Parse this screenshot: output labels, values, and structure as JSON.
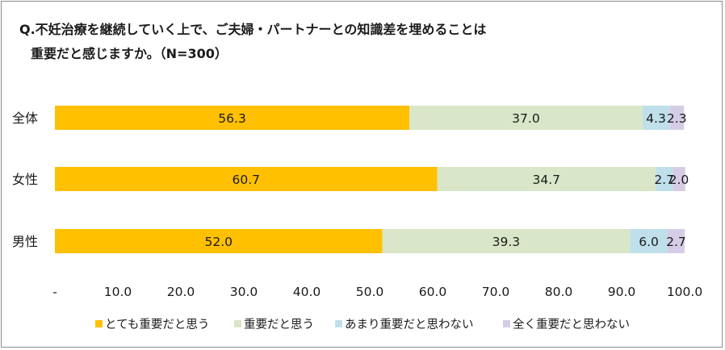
{
  "chart_data": {
    "type": "bar",
    "orientation": "horizontal",
    "stacked": true,
    "title_line1": "Q.不妊治療を継続していく上で、ご夫婦・パートナーとの知識差を埋めることは",
    "title_line2": "重要だと感じますか。（N=300）",
    "categories": [
      "全体",
      "女性",
      "男性"
    ],
    "series": [
      {
        "name": "とても重要だと思う",
        "color": "#ffc000",
        "values": [
          56.3,
          60.7,
          52.0
        ],
        "labels": [
          "56.3",
          "60.7",
          "52.0"
        ]
      },
      {
        "name": "重要だと思う",
        "color": "#d9e6c7",
        "values": [
          37.0,
          34.7,
          39.3
        ],
        "labels": [
          "37.0",
          "34.7",
          "39.3"
        ]
      },
      {
        "name": "あまり重要だと思わない",
        "color": "#bfe0ea",
        "values": [
          4.3,
          2.7,
          6.0
        ],
        "labels": [
          "4.3",
          "2.7",
          "6.0"
        ]
      },
      {
        "name": "全く重要だと思わない",
        "color": "#d5cde6",
        "values": [
          2.3,
          2.0,
          2.7
        ],
        "labels": [
          "2.3",
          "2.0",
          "2.7"
        ]
      }
    ],
    "xlim": [
      0,
      100
    ],
    "xticks": [
      0,
      10,
      20,
      30,
      40,
      50,
      60,
      70,
      80,
      90,
      100
    ],
    "xtick_labels": [
      "-",
      "10.0",
      "20.0",
      "30.0",
      "40.0",
      "50.0",
      "60.0",
      "70.0",
      "80.0",
      "90.0",
      "100.0"
    ],
    "legend_position": "bottom",
    "grid": false
  }
}
